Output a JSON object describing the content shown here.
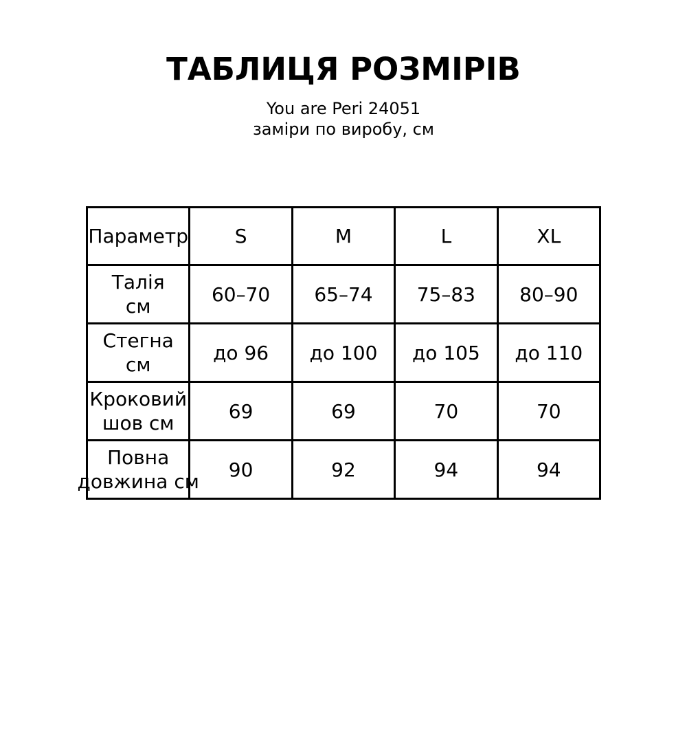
{
  "page": {
    "background_color": "#ffffff",
    "text_color": "#000000",
    "table_border_color": "#000000"
  },
  "chart_data": {
    "type": "table",
    "title": "ТАБЛИЦЯ РОЗМІРІВ",
    "subtitle_lines": [
      "You are Peri 24051",
      "заміри по виробу, см"
    ],
    "columns": [
      "Параметр",
      "S",
      "M",
      "L",
      "XL"
    ],
    "rows": [
      {
        "label": "Талія см",
        "label_lines": [
          "Талія",
          "см"
        ],
        "values": [
          "60–70",
          "65–74",
          "75–83",
          "80–90"
        ]
      },
      {
        "label": "Стегна см",
        "label_lines": [
          "Стегна",
          "см"
        ],
        "values": [
          "до 96",
          "до 100",
          "до 105",
          "до 110"
        ]
      },
      {
        "label": "Кроковий шов см",
        "label_lines": [
          "Кроковий",
          "шов см"
        ],
        "values": [
          "69",
          "69",
          "70",
          "70"
        ]
      },
      {
        "label": "Повна довжина см",
        "label_lines": [
          "Повна",
          "довжина см"
        ],
        "values": [
          "90",
          "92",
          "94",
          "94"
        ]
      }
    ]
  }
}
